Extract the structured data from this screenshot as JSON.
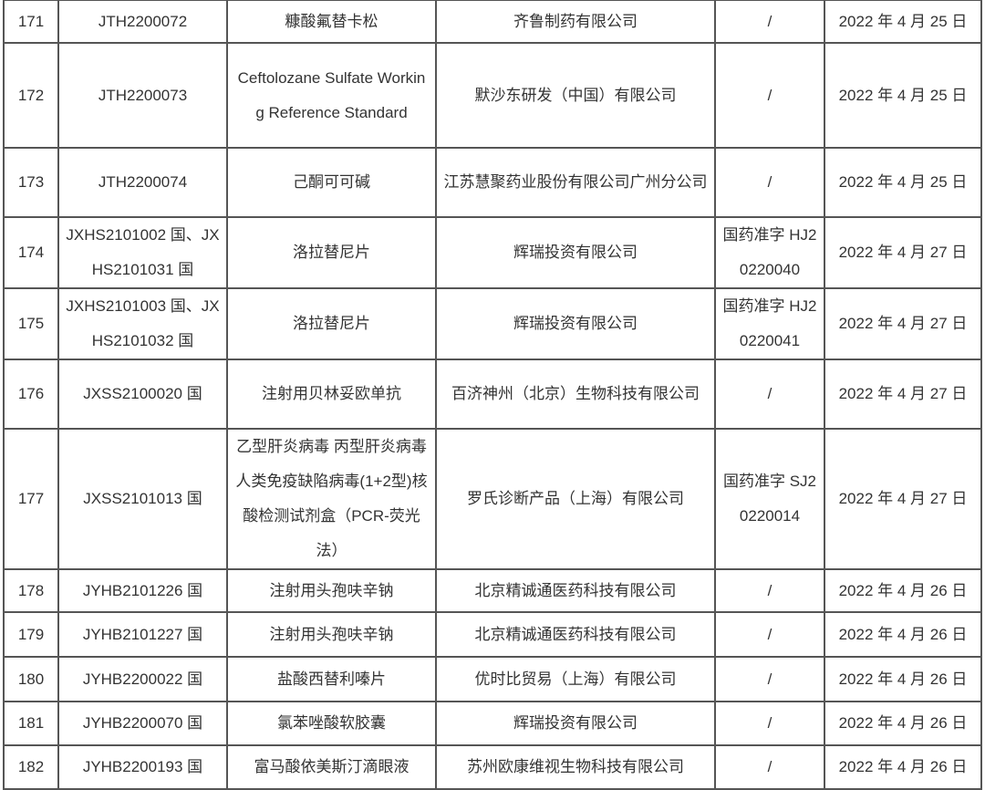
{
  "rows": [
    {
      "no": "171",
      "code": "JTH2200072",
      "name": "糠酸氟替卡松",
      "company": "齐鲁制药有限公司",
      "approval": "/",
      "date": "2022 年 4 月 25 日"
    },
    {
      "no": "172",
      "code": "JTH2200073",
      "name": "Ceftolozane Sulfate Working Reference Standard",
      "company": "默沙东研发（中国）有限公司",
      "approval": "/",
      "date": "2022 年 4 月 25 日"
    },
    {
      "no": "173",
      "code": "JTH2200074",
      "name": "己酮可可碱",
      "company": "江苏慧聚药业股份有限公司广州分公司",
      "approval": "/",
      "date": "2022 年 4 月 25 日"
    },
    {
      "no": "174",
      "code": "JXHS2101002 国、JXHS2101031 国",
      "name": "洛拉替尼片",
      "company": "辉瑞投资有限公司",
      "approval": "国药准字 HJ20220040",
      "date": "2022 年 4 月 27 日"
    },
    {
      "no": "175",
      "code": "JXHS2101003 国、JXHS2101032 国",
      "name": "洛拉替尼片",
      "company": "辉瑞投资有限公司",
      "approval": "国药准字 HJ20220041",
      "date": "2022 年 4 月 27 日"
    },
    {
      "no": "176",
      "code": "JXSS2100020 国",
      "name": "注射用贝林妥欧单抗",
      "company": "百济神州（北京）生物科技有限公司",
      "approval": "/",
      "date": "2022 年 4 月 27 日"
    },
    {
      "no": "177",
      "code": "JXSS2101013 国",
      "name": "乙型肝炎病毒 丙型肝炎病毒 人类免疫缺陷病毒(1+2型)核酸检测试剂盒（PCR-荧光法）",
      "company": "罗氏诊断产品（上海）有限公司",
      "approval": "国药准字 SJ20220014",
      "date": "2022 年 4 月 27 日"
    },
    {
      "no": "178",
      "code": "JYHB2101226 国",
      "name": "注射用头孢呋辛钠",
      "company": "北京精诚通医药科技有限公司",
      "approval": "/",
      "date": "2022 年 4 月 26 日"
    },
    {
      "no": "179",
      "code": "JYHB2101227 国",
      "name": "注射用头孢呋辛钠",
      "company": "北京精诚通医药科技有限公司",
      "approval": "/",
      "date": "2022 年 4 月 26 日"
    },
    {
      "no": "180",
      "code": "JYHB2200022 国",
      "name": "盐酸西替利嗪片",
      "company": "优时比贸易（上海）有限公司",
      "approval": "/",
      "date": "2022 年 4 月 26 日"
    },
    {
      "no": "181",
      "code": "JYHB2200070 国",
      "name": "氯苯唑酸软胶囊",
      "company": "辉瑞投资有限公司",
      "approval": "/",
      "date": "2022 年 4 月 26 日"
    },
    {
      "no": "182",
      "code": "JYHB2200193 国",
      "name": "富马酸依美斯汀滴眼液",
      "company": "苏州欧康维视生物科技有限公司",
      "approval": "/",
      "date": "2022 年 4 月 26 日"
    }
  ]
}
